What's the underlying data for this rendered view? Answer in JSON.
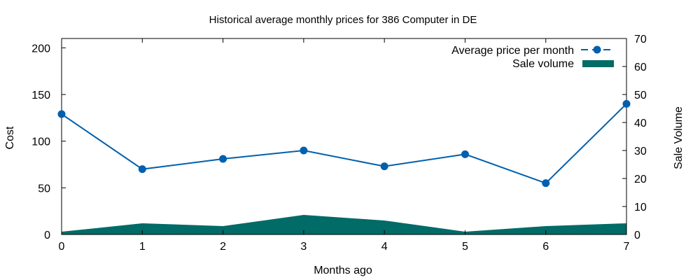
{
  "chart_data": {
    "type": "line+area",
    "title": "Historical average monthly prices for 386 Computer in DE",
    "xlabel": "Months ago",
    "ylabel": "Cost",
    "y2label": "Sale Volume",
    "x": [
      0,
      1,
      2,
      3,
      4,
      5,
      6,
      7
    ],
    "x_ticks": [
      "0",
      "1",
      "2",
      "3",
      "4",
      "5",
      "6",
      "7"
    ],
    "xlim": [
      0,
      7
    ],
    "ylim": [
      0,
      210
    ],
    "y_ticks": [
      "0",
      "50",
      "100",
      "150",
      "200"
    ],
    "y2lim": [
      0,
      70
    ],
    "y2_ticks": [
      "0",
      "10",
      "20",
      "30",
      "40",
      "50",
      "60",
      "70"
    ],
    "grid": false,
    "legend_position": "top-right",
    "series": [
      {
        "name": "Average price per month",
        "type": "line",
        "axis": "left",
        "color": "#0060ad",
        "values": [
          129,
          70,
          81,
          90,
          73,
          86,
          55,
          140
        ]
      },
      {
        "name": "Sale volume",
        "type": "area",
        "axis": "right",
        "color": "#006b67",
        "values": [
          1,
          4,
          3,
          7,
          5,
          1,
          3,
          4
        ]
      }
    ]
  }
}
